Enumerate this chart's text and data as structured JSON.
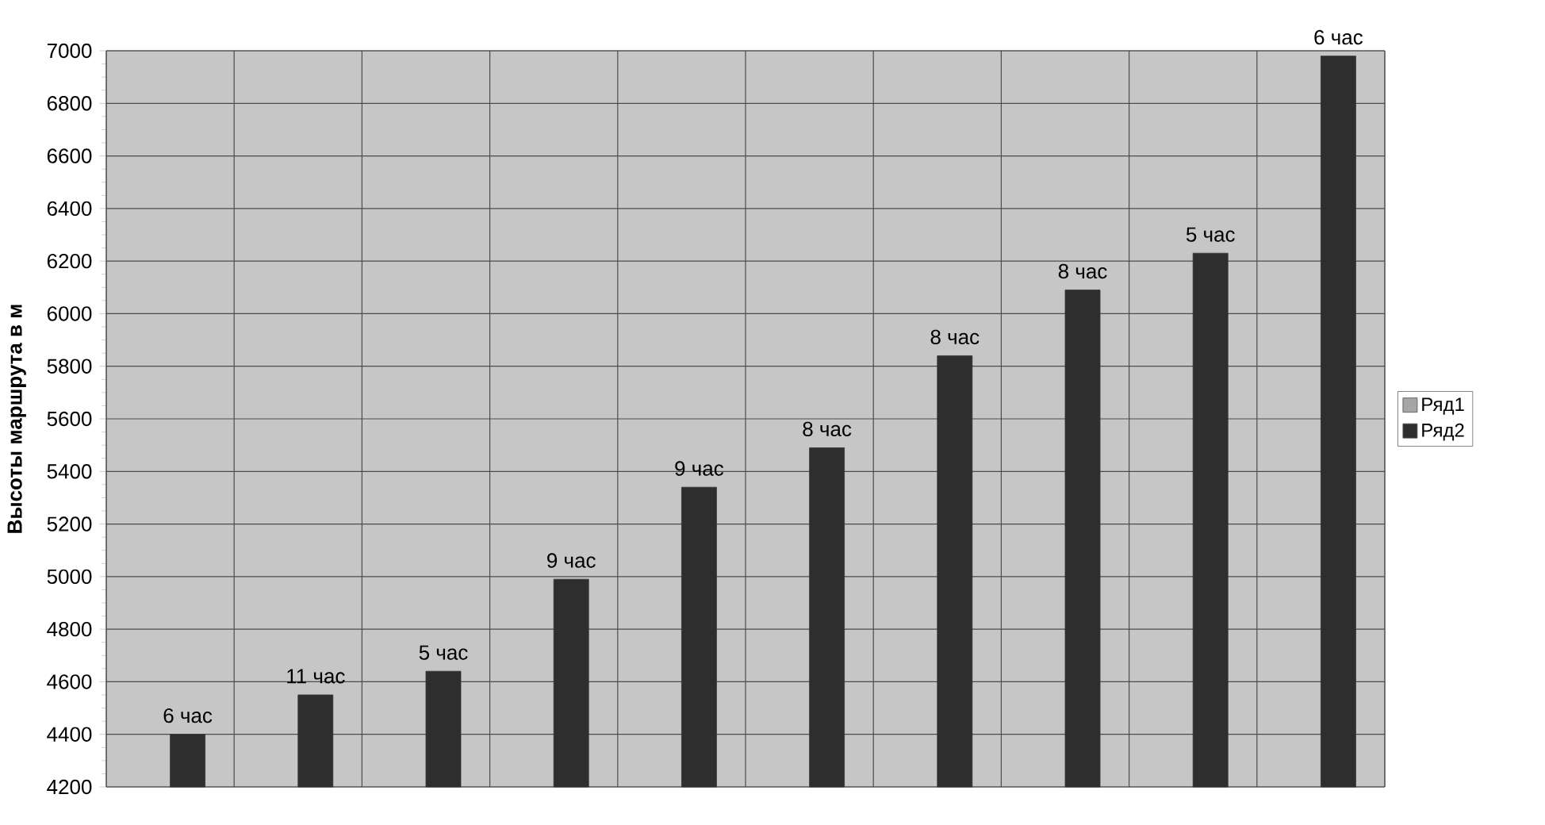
{
  "chart_data": {
    "type": "bar",
    "ylabel": "Высоты маршрута в м",
    "categories": [
      null,
      null,
      null,
      null,
      null,
      null,
      null,
      null,
      null,
      null
    ],
    "series": [
      {
        "name": "Ряд1",
        "color": "#a6a6a6",
        "values": [
          null,
          null,
          null,
          null,
          null,
          null,
          null,
          null,
          null,
          null
        ]
      },
      {
        "name": "Ряд2",
        "color": "#2e2e2e",
        "values": [
          4400,
          4550,
          4640,
          4990,
          5340,
          5490,
          5840,
          6090,
          6230,
          6980
        ]
      }
    ],
    "annotations": [
      {
        "text": "6 час",
        "y": 4400
      },
      {
        "text": "11 час",
        "y": 4550
      },
      {
        "text": "5 час",
        "y": 4640
      },
      {
        "text": "9 час",
        "y": 4990
      },
      {
        "text": "9 час",
        "y": 5340
      },
      {
        "text": "8 час",
        "y": 5490
      },
      {
        "text": "8 час",
        "y": 5840
      },
      {
        "text": "8 час",
        "y": 6090
      },
      {
        "text": "5 час",
        "y": 6230
      },
      {
        "text": "6 час",
        "y": 6980
      }
    ],
    "ylim": [
      4200,
      7000
    ],
    "yticks": [
      4200,
      4400,
      4600,
      4800,
      5000,
      5200,
      5400,
      5600,
      5800,
      6000,
      6200,
      6400,
      6600,
      6800,
      7000
    ],
    "grid": true,
    "legend": "right"
  }
}
